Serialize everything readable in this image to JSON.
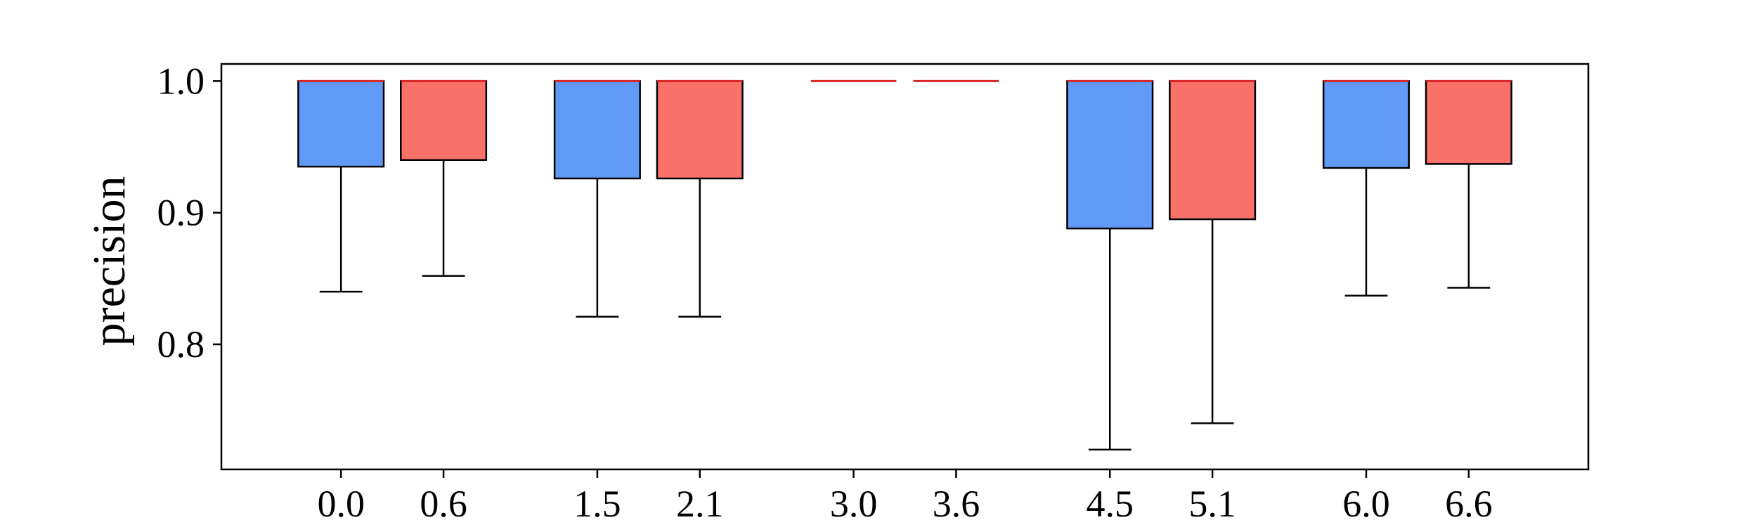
{
  "chart_data": {
    "type": "box",
    "ylabel": "precision",
    "xlabel": "",
    "title": "",
    "ylim": [
      0.705,
      1.013
    ],
    "xlim": [
      -0.7,
      7.3
    ],
    "yticks": [
      0.8,
      0.9,
      1.0
    ],
    "ytick_labels": [
      "0.8",
      "0.9",
      "1.0"
    ],
    "grid": false,
    "legend": "none",
    "colors": {
      "blue": "#6199f7",
      "red": "#fa716a",
      "median": "#d62728",
      "stroke": "#000000"
    },
    "boxes": [
      {
        "x": 0.0,
        "label": "0.0",
        "color": "blue",
        "whislo": 0.84,
        "q1": 0.935,
        "median": 1.0,
        "q3": 1.0,
        "whishi": 1.0
      },
      {
        "x": 0.6,
        "label": "0.6",
        "color": "red",
        "whislo": 0.852,
        "q1": 0.94,
        "median": 1.0,
        "q3": 1.0,
        "whishi": 1.0
      },
      {
        "x": 1.5,
        "label": "1.5",
        "color": "blue",
        "whislo": 0.821,
        "q1": 0.926,
        "median": 1.0,
        "q3": 1.0,
        "whishi": 1.0
      },
      {
        "x": 2.1,
        "label": "2.1",
        "color": "red",
        "whislo": 0.821,
        "q1": 0.926,
        "median": 1.0,
        "q3": 1.0,
        "whishi": 1.0
      },
      {
        "x": 3.0,
        "label": "3.0",
        "color": "blue",
        "whislo": 1.0,
        "q1": 1.0,
        "median": 1.0,
        "q3": 1.0,
        "whishi": 1.0
      },
      {
        "x": 3.6,
        "label": "3.6",
        "color": "red",
        "whislo": 1.0,
        "q1": 1.0,
        "median": 1.0,
        "q3": 1.0,
        "whishi": 1.0
      },
      {
        "x": 4.5,
        "label": "4.5",
        "color": "blue",
        "whislo": 0.72,
        "q1": 0.888,
        "median": 1.0,
        "q3": 1.0,
        "whishi": 1.0
      },
      {
        "x": 5.1,
        "label": "5.1",
        "color": "red",
        "whislo": 0.74,
        "q1": 0.895,
        "median": 1.0,
        "q3": 1.0,
        "whishi": 1.0
      },
      {
        "x": 6.0,
        "label": "6.0",
        "color": "blue",
        "whislo": 0.837,
        "q1": 0.934,
        "median": 1.0,
        "q3": 1.0,
        "whishi": 1.0
      },
      {
        "x": 6.6,
        "label": "6.6",
        "color": "red",
        "whislo": 0.843,
        "q1": 0.937,
        "median": 1.0,
        "q3": 1.0,
        "whishi": 1.0
      }
    ]
  }
}
